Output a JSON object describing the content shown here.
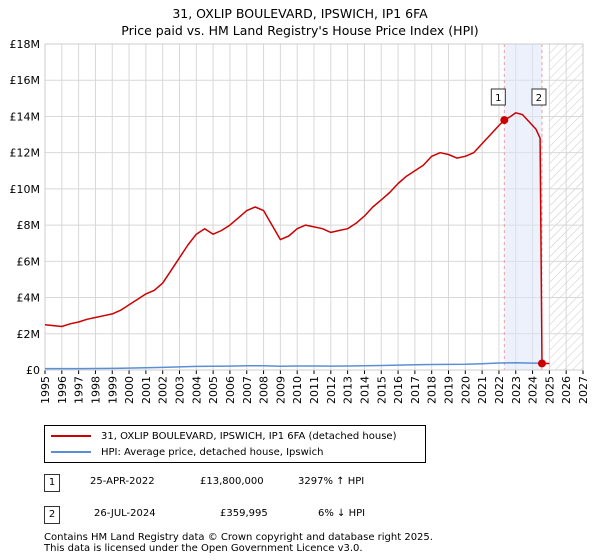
{
  "title": "31, OXLIP BOULEVARD, IPSWICH, IP1 6FA",
  "subtitle": "Price paid vs. HM Land Registry's House Price Index (HPI)",
  "colors": {
    "property": "#cc0000",
    "hpi": "#5a8fd6",
    "grid": "#d8d8d8",
    "marker_line": "#e8a0a0"
  },
  "chart_data": {
    "type": "line",
    "title": "31, OXLIP BOULEVARD, IPSWICH, IP1 6FA",
    "subtitle": "Price paid vs. HM Land Registry's House Price Index (HPI)",
    "x_range": [
      1995,
      2027
    ],
    "ylim": [
      0,
      18000000
    ],
    "y_ticks": [
      {
        "value": 0,
        "label": "£0"
      },
      {
        "value": 2000000,
        "label": "£2M"
      },
      {
        "value": 4000000,
        "label": "£4M"
      },
      {
        "value": 6000000,
        "label": "£6M"
      },
      {
        "value": 8000000,
        "label": "£8M"
      },
      {
        "value": 10000000,
        "label": "£10M"
      },
      {
        "value": 12000000,
        "label": "£12M"
      },
      {
        "value": 14000000,
        "label": "£14M"
      },
      {
        "value": 16000000,
        "label": "£16M"
      },
      {
        "value": 18000000,
        "label": "£18M"
      }
    ],
    "x_ticks": [
      "1995",
      "1996",
      "1997",
      "1998",
      "1999",
      "2000",
      "2001",
      "2002",
      "2003",
      "2004",
      "2005",
      "2006",
      "2007",
      "2008",
      "2009",
      "2010",
      "2011",
      "2012",
      "2013",
      "2014",
      "2015",
      "2016",
      "2017",
      "2018",
      "2019",
      "2020",
      "2021",
      "2022",
      "2023",
      "2024",
      "2025",
      "2026",
      "2027"
    ],
    "future_hatch_from": 2025.0,
    "series": [
      {
        "name": "31, OXLIP BOULEVARD, IPSWICH, IP1 6FA (detached house)",
        "color": "#cc0000",
        "points": [
          [
            1995.0,
            2500000
          ],
          [
            1995.5,
            2450000
          ],
          [
            1996.0,
            2400000
          ],
          [
            1996.5,
            2550000
          ],
          [
            1997.0,
            2650000
          ],
          [
            1997.5,
            2800000
          ],
          [
            1998.0,
            2900000
          ],
          [
            1998.5,
            3000000
          ],
          [
            1999.0,
            3100000
          ],
          [
            1999.5,
            3300000
          ],
          [
            2000.0,
            3600000
          ],
          [
            2000.5,
            3900000
          ],
          [
            2001.0,
            4200000
          ],
          [
            2001.5,
            4400000
          ],
          [
            2002.0,
            4800000
          ],
          [
            2002.5,
            5500000
          ],
          [
            2003.0,
            6200000
          ],
          [
            2003.5,
            6900000
          ],
          [
            2004.0,
            7500000
          ],
          [
            2004.5,
            7800000
          ],
          [
            2005.0,
            7500000
          ],
          [
            2005.5,
            7700000
          ],
          [
            2006.0,
            8000000
          ],
          [
            2006.5,
            8400000
          ],
          [
            2007.0,
            8800000
          ],
          [
            2007.5,
            9000000
          ],
          [
            2008.0,
            8800000
          ],
          [
            2008.5,
            8000000
          ],
          [
            2009.0,
            7200000
          ],
          [
            2009.5,
            7400000
          ],
          [
            2010.0,
            7800000
          ],
          [
            2010.5,
            8000000
          ],
          [
            2011.0,
            7900000
          ],
          [
            2011.5,
            7800000
          ],
          [
            2012.0,
            7600000
          ],
          [
            2012.5,
            7700000
          ],
          [
            2013.0,
            7800000
          ],
          [
            2013.5,
            8100000
          ],
          [
            2014.0,
            8500000
          ],
          [
            2014.5,
            9000000
          ],
          [
            2015.0,
            9400000
          ],
          [
            2015.5,
            9800000
          ],
          [
            2016.0,
            10300000
          ],
          [
            2016.5,
            10700000
          ],
          [
            2017.0,
            11000000
          ],
          [
            2017.5,
            11300000
          ],
          [
            2018.0,
            11800000
          ],
          [
            2018.5,
            12000000
          ],
          [
            2019.0,
            11900000
          ],
          [
            2019.5,
            11700000
          ],
          [
            2020.0,
            11800000
          ],
          [
            2020.5,
            12000000
          ],
          [
            2021.0,
            12500000
          ],
          [
            2021.5,
            13000000
          ],
          [
            2022.0,
            13500000
          ],
          [
            2022.32,
            13800000
          ],
          [
            2022.7,
            14000000
          ],
          [
            2023.0,
            14200000
          ],
          [
            2023.4,
            14100000
          ],
          [
            2023.8,
            13700000
          ],
          [
            2024.2,
            13300000
          ],
          [
            2024.45,
            12800000
          ],
          [
            2024.56,
            359995
          ],
          [
            2025.0,
            359995
          ]
        ]
      },
      {
        "name": "HPI: Average price, detached house, Ipswich",
        "color": "#5a8fd6",
        "points": [
          [
            1995.0,
            75000
          ],
          [
            1997.0,
            80000
          ],
          [
            1999.0,
            90000
          ],
          [
            2001.0,
            120000
          ],
          [
            2002.0,
            145000
          ],
          [
            2003.0,
            170000
          ],
          [
            2004.0,
            200000
          ],
          [
            2005.0,
            205000
          ],
          [
            2006.0,
            215000
          ],
          [
            2007.0,
            235000
          ],
          [
            2008.0,
            230000
          ],
          [
            2009.0,
            210000
          ],
          [
            2010.0,
            220000
          ],
          [
            2011.0,
            220000
          ],
          [
            2012.0,
            215000
          ],
          [
            2013.0,
            220000
          ],
          [
            2014.0,
            235000
          ],
          [
            2015.0,
            250000
          ],
          [
            2016.0,
            270000
          ],
          [
            2017.0,
            290000
          ],
          [
            2018.0,
            305000
          ],
          [
            2019.0,
            310000
          ],
          [
            2020.0,
            315000
          ],
          [
            2021.0,
            345000
          ],
          [
            2022.0,
            385000
          ],
          [
            2023.0,
            395000
          ],
          [
            2024.0,
            380000
          ],
          [
            2024.56,
            378000
          ]
        ]
      }
    ],
    "markers": [
      {
        "label": "1",
        "x": 2022.32,
        "y": 13800000
      },
      {
        "label": "2",
        "x": 2024.56,
        "y": 359995
      }
    ]
  },
  "legend": {
    "property": "31, OXLIP BOULEVARD, IPSWICH, IP1 6FA (detached house)",
    "hpi": "HPI: Average price, detached house, Ipswich"
  },
  "transactions": [
    {
      "num": "1",
      "date": "25-APR-2022",
      "price": "£13,800,000",
      "hpi": "3297% ↑ HPI"
    },
    {
      "num": "2",
      "date": "26-JUL-2024",
      "price": "£359,995",
      "hpi": "6% ↓ HPI"
    }
  ],
  "footer": {
    "line1": "Contains HM Land Registry data © Crown copyright and database right 2025.",
    "line2": "This data is licensed under the Open Government Licence v3.0."
  }
}
